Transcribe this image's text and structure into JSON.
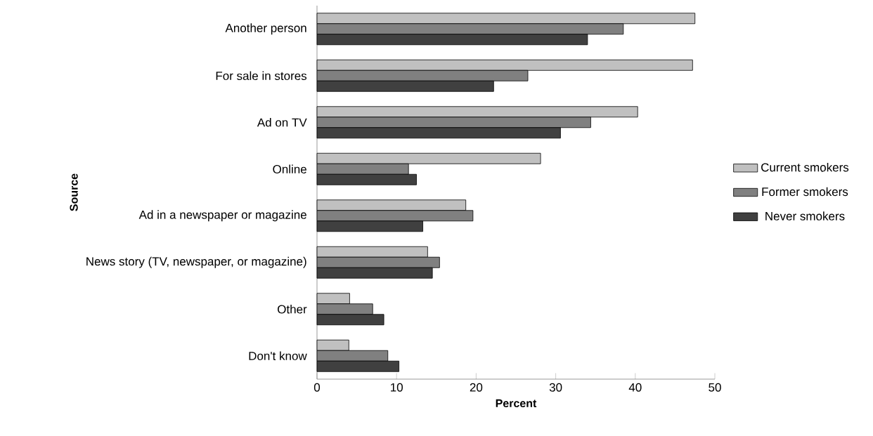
{
  "chart_data": {
    "type": "bar",
    "orientation": "horizontal",
    "xlabel": "Percent",
    "ylabel": "Source",
    "categories": [
      "Another person",
      "For sale in stores",
      "Ad on TV",
      "Online",
      "Ad in a newspaper or magazine",
      "News story (TV, newspaper, or magazine)",
      "Other",
      "Don't know"
    ],
    "series": [
      {
        "name": "Current smokers",
        "color": "#c0c0c0",
        "values": [
          47.5,
          47.2,
          40.3,
          28.1,
          18.7,
          13.9,
          4.1,
          4.0
        ]
      },
      {
        "name": "Former smokers",
        "color": "#808080",
        "values": [
          38.5,
          26.5,
          34.4,
          11.5,
          19.6,
          15.4,
          7.0,
          8.9
        ]
      },
      {
        "name": "Never smokers",
        "color": "#404040",
        "values": [
          34.0,
          22.2,
          30.6,
          12.5,
          13.3,
          14.5,
          8.4,
          10.3
        ]
      }
    ],
    "xlim": [
      0,
      50
    ],
    "xticks": [
      0,
      10,
      20,
      30,
      40,
      50
    ],
    "legend": "right"
  }
}
